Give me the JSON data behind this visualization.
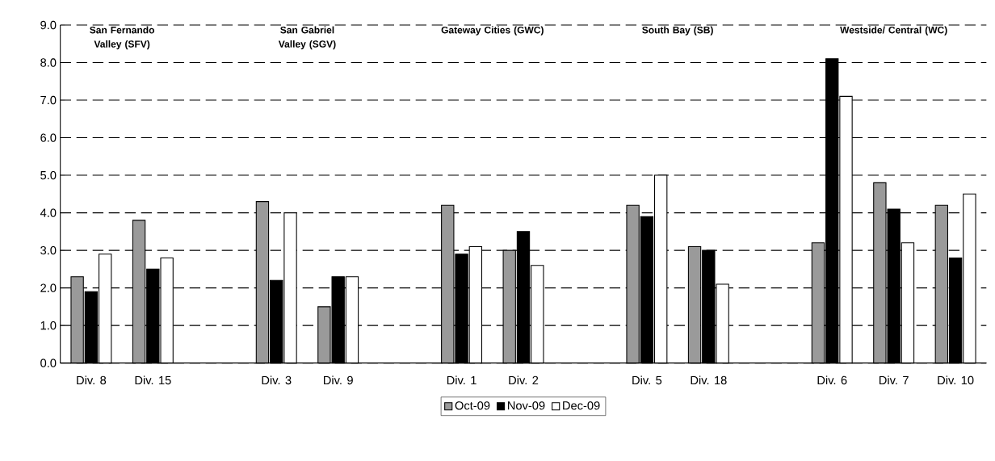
{
  "chart_data": {
    "type": "bar",
    "categories": [
      "Div. 8",
      "Div. 15",
      null,
      "Div. 3",
      "Div. 9",
      null,
      "Div. 1",
      "Div. 2",
      null,
      "Div. 5",
      "Div. 18",
      null,
      "Div. 6",
      "Div. 7",
      "Div. 10"
    ],
    "series": [
      {
        "name": "Oct-09",
        "color": "#9a9a9a",
        "values": [
          2.3,
          3.8,
          null,
          4.3,
          1.5,
          null,
          4.2,
          3.0,
          null,
          4.2,
          3.1,
          null,
          3.2,
          4.8,
          4.2
        ]
      },
      {
        "name": "Nov-09",
        "color": "#000000",
        "values": [
          1.9,
          2.5,
          null,
          2.2,
          2.3,
          null,
          2.9,
          3.5,
          null,
          3.9,
          3.0,
          null,
          8.1,
          4.1,
          2.8
        ]
      },
      {
        "name": "Dec-09",
        "color": "#ffffff",
        "values": [
          2.9,
          2.8,
          null,
          4.0,
          2.3,
          null,
          3.1,
          2.6,
          null,
          5.0,
          2.1,
          null,
          7.1,
          3.2,
          4.5
        ]
      }
    ],
    "ylim": [
      0,
      9
    ],
    "yticks": [
      {
        "value": 0,
        "label": "0.0"
      },
      {
        "value": 1,
        "label": "1.0"
      },
      {
        "value": 2,
        "label": "2.0"
      },
      {
        "value": 3,
        "label": "3.0"
      },
      {
        "value": 4,
        "label": "4.0"
      },
      {
        "value": 5,
        "label": "5.0"
      },
      {
        "value": 6,
        "label": "6.0"
      },
      {
        "value": 7,
        "label": "7.0"
      },
      {
        "value": 8,
        "label": "8.0"
      },
      {
        "value": 9,
        "label": "9.0"
      }
    ],
    "annotations": [
      "San Fernando Valley (SFV)",
      "San Gabriel Valley (SGV)",
      "Gateway Cities (GWC)",
      "South Bay (SB)",
      "Westside/ Central (WC)"
    ],
    "grid": "y",
    "legend": "bottom"
  }
}
